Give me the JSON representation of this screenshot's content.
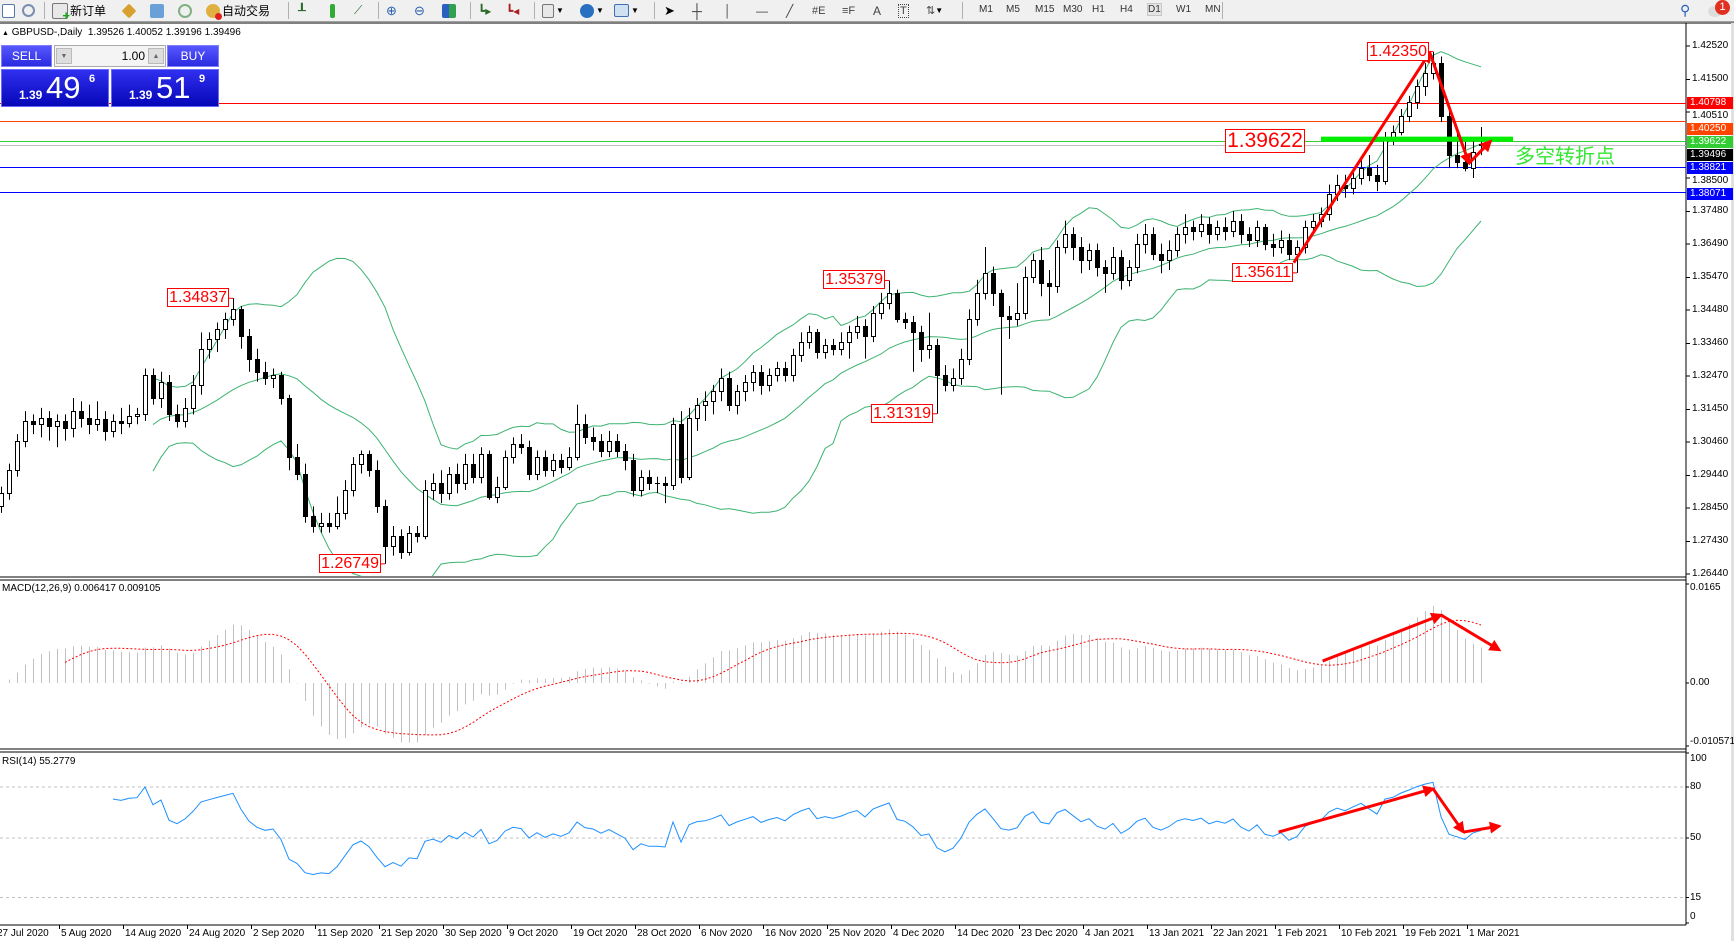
{
  "toolbar": {
    "new_order_label": "新订单",
    "auto_trading_label": "自动交易",
    "timeframes": [
      "M1",
      "M5",
      "M15",
      "M30",
      "H1",
      "H4",
      "D1",
      "W1",
      "MN"
    ],
    "active_timeframe": "D1",
    "notification_count": "1"
  },
  "chart_info": {
    "symbol": "GBPUSD-,Daily",
    "ohlc_text": "1.39526 1.40052 1.39196 1.39496"
  },
  "trade_panel": {
    "sell_label": "SELL",
    "buy_label": "BUY",
    "lot": "1.00",
    "sell_prefix": "1.39",
    "sell_big": "49",
    "sell_pip": "6",
    "buy_prefix": "1.39",
    "buy_big": "51",
    "buy_pip": "9"
  },
  "colors": {
    "bollinger": "#3cb371",
    "rsi": "#1e90ff",
    "macd_hist": "#c0c0c0",
    "macd_signal": "#ff0000",
    "annotation": "#ff0000",
    "pivot_line": "#00ee00"
  },
  "chart_data": {
    "type": "candlestick",
    "symbol": "GBPUSD",
    "timeframe": "Daily",
    "ylim": [
      1.2644,
      1.4252
    ],
    "price_ticks": [
      "1.42520",
      "1.41500",
      "1.40510",
      "1.38500",
      "1.37480",
      "1.36490",
      "1.35470",
      "1.34480",
      "1.33460",
      "1.32470",
      "1.31450",
      "1.30460",
      "1.29440",
      "1.28450",
      "1.27430",
      "1.26440"
    ],
    "date_labels": [
      "27 Jul 2020",
      "5 Aug 2020",
      "14 Aug 2020",
      "24 Aug 2020",
      "2 Sep 2020",
      "11 Sep 2020",
      "21 Sep 2020",
      "30 Sep 2020",
      "9 Oct 2020",
      "19 Oct 2020",
      "28 Oct 2020",
      "6 Nov 2020",
      "16 Nov 2020",
      "25 Nov 2020",
      "4 Dec 2020",
      "14 Dec 2020",
      "23 Dec 2020",
      "4 Jan 2021",
      "13 Jan 2021",
      "22 Jan 2021",
      "1 Feb 2021",
      "10 Feb 2021",
      "19 Feb 2021",
      "1 Mar 2021"
    ],
    "date_label_every_bars": 8,
    "horizontal_lines": [
      {
        "price": 1.40798,
        "label": "1.40798",
        "color": "#ff0000"
      },
      {
        "price": 1.4025,
        "label": "1.40250",
        "color": "#ff4500"
      },
      {
        "price": 1.39622,
        "label": "1.39622",
        "color": "#32cd32"
      },
      {
        "price": 1.39496,
        "label": "1.39496",
        "color": "#000000",
        "line_color": "#c0c0c0"
      },
      {
        "price": 1.38821,
        "label": "1.38821",
        "color": "#0000ff"
      },
      {
        "price": 1.38071,
        "label": "1.38071",
        "color": "#0000ff"
      }
    ],
    "price_annotations": [
      {
        "text": "1.34837",
        "bar": 29,
        "price": 1.34837
      },
      {
        "text": "1.26749",
        "bar": 48,
        "price": 1.26749
      },
      {
        "text": "1.35379",
        "bar": 111,
        "price": 1.35379
      },
      {
        "text": "1.31319",
        "bar": 117,
        "price": 1.31319
      },
      {
        "text": "1.35611",
        "bar": 162,
        "price": 1.35611
      },
      {
        "text": "1.42350",
        "bar": 179,
        "price": 1.4235
      }
    ],
    "pivot": {
      "text": "1.39622",
      "price": 1.39622,
      "bar_from": 165,
      "bar_to": 189,
      "note": "多空转折点"
    },
    "price_arrows": [
      [
        161.6,
        1.3592
      ],
      [
        178.6,
        1.4232
      ],
      [
        183.5,
        1.3895
      ],
      [
        186.2,
        1.3962
      ]
    ],
    "bollinger": {
      "period": 20,
      "deviation": 2
    },
    "ohlc": [
      [
        1.285,
        1.291,
        1.283,
        1.289
      ],
      [
        1.289,
        1.298,
        1.287,
        1.296
      ],
      [
        1.296,
        1.307,
        1.294,
        1.305
      ],
      [
        1.305,
        1.314,
        1.303,
        1.311
      ],
      [
        1.311,
        1.313,
        1.307,
        1.31
      ],
      [
        1.31,
        1.315,
        1.306,
        1.312
      ],
      [
        1.312,
        1.314,
        1.305,
        1.3095
      ],
      [
        1.3095,
        1.313,
        1.303,
        1.311
      ],
      [
        1.311,
        1.313,
        1.305,
        1.309
      ],
      [
        1.309,
        1.318,
        1.306,
        1.314
      ],
      [
        1.314,
        1.317,
        1.309,
        1.312
      ],
      [
        1.312,
        1.316,
        1.307,
        1.31
      ],
      [
        1.31,
        1.317,
        1.308,
        1.3115
      ],
      [
        1.3115,
        1.314,
        1.305,
        1.308
      ],
      [
        1.308,
        1.313,
        1.306,
        1.311
      ],
      [
        1.311,
        1.315,
        1.307,
        1.3105
      ],
      [
        1.3105,
        1.316,
        1.309,
        1.3125
      ],
      [
        1.3125,
        1.315,
        1.31,
        1.313
      ],
      [
        1.313,
        1.327,
        1.311,
        1.325
      ],
      [
        1.325,
        1.327,
        1.316,
        1.318
      ],
      [
        1.318,
        1.326,
        1.315,
        1.323
      ],
      [
        1.323,
        1.325,
        1.311,
        1.313
      ],
      [
        1.313,
        1.316,
        1.309,
        1.311
      ],
      [
        1.311,
        1.318,
        1.309,
        1.315
      ],
      [
        1.315,
        1.325,
        1.313,
        1.322
      ],
      [
        1.322,
        1.338,
        1.319,
        1.333
      ],
      [
        1.333,
        1.338,
        1.33,
        1.336
      ],
      [
        1.336,
        1.341,
        1.332,
        1.339
      ],
      [
        1.339,
        1.344,
        1.336,
        1.342
      ],
      [
        1.342,
        1.3484,
        1.34,
        1.345
      ],
      [
        1.345,
        1.346,
        1.333,
        1.337
      ],
      [
        1.337,
        1.339,
        1.326,
        1.33
      ],
      [
        1.33,
        1.333,
        1.323,
        1.326
      ],
      [
        1.326,
        1.329,
        1.322,
        1.324
      ],
      [
        1.324,
        1.327,
        1.321,
        1.325
      ],
      [
        1.325,
        1.326,
        1.316,
        1.318
      ],
      [
        1.318,
        1.319,
        1.296,
        1.3
      ],
      [
        1.3,
        1.304,
        1.293,
        1.295
      ],
      [
        1.295,
        1.298,
        1.28,
        1.282
      ],
      [
        1.282,
        1.285,
        1.277,
        1.279
      ],
      [
        1.279,
        1.283,
        1.277,
        1.28
      ],
      [
        1.28,
        1.283,
        1.277,
        1.279
      ],
      [
        1.279,
        1.288,
        1.278,
        1.283
      ],
      [
        1.283,
        1.293,
        1.281,
        1.29
      ],
      [
        1.29,
        1.3,
        1.288,
        1.298
      ],
      [
        1.298,
        1.302,
        1.295,
        1.301
      ],
      [
        1.301,
        1.302,
        1.294,
        1.296
      ],
      [
        1.296,
        1.299,
        1.283,
        1.285
      ],
      [
        1.285,
        1.287,
        1.2675,
        1.273
      ],
      [
        1.273,
        1.279,
        1.27,
        1.276
      ],
      [
        1.276,
        1.278,
        1.269,
        1.271
      ],
      [
        1.271,
        1.279,
        1.27,
        1.277
      ],
      [
        1.277,
        1.279,
        1.274,
        1.276
      ],
      [
        1.276,
        1.293,
        1.275,
        1.29
      ],
      [
        1.29,
        1.295,
        1.287,
        1.292
      ],
      [
        1.292,
        1.296,
        1.286,
        1.289
      ],
      [
        1.289,
        1.297,
        1.287,
        1.295
      ],
      [
        1.295,
        1.298,
        1.289,
        1.292
      ],
      [
        1.292,
        1.301,
        1.29,
        1.298
      ],
      [
        1.298,
        1.301,
        1.292,
        1.294
      ],
      [
        1.294,
        1.303,
        1.292,
        1.301
      ],
      [
        1.301,
        1.302,
        1.287,
        1.288
      ],
      [
        1.288,
        1.294,
        1.286,
        1.291
      ],
      [
        1.291,
        1.302,
        1.29,
        1.3
      ],
      [
        1.3,
        1.306,
        1.298,
        1.304
      ],
      [
        1.304,
        1.307,
        1.301,
        1.303
      ],
      [
        1.303,
        1.305,
        1.293,
        1.295
      ],
      [
        1.295,
        1.302,
        1.293,
        1.3
      ],
      [
        1.3,
        1.302,
        1.294,
        1.296
      ],
      [
        1.296,
        1.301,
        1.294,
        1.299
      ],
      [
        1.299,
        1.301,
        1.295,
        1.297
      ],
      [
        1.297,
        1.303,
        1.296,
        1.3
      ],
      [
        1.3,
        1.316,
        1.299,
        1.31
      ],
      [
        1.31,
        1.313,
        1.304,
        1.306
      ],
      [
        1.306,
        1.309,
        1.302,
        1.305
      ],
      [
        1.305,
        1.307,
        1.3,
        1.302
      ],
      [
        1.302,
        1.308,
        1.3,
        1.305
      ],
      [
        1.305,
        1.307,
        1.3,
        1.302
      ],
      [
        1.302,
        1.304,
        1.296,
        1.299
      ],
      [
        1.299,
        1.301,
        1.288,
        1.29
      ],
      [
        1.29,
        1.296,
        1.288,
        1.294
      ],
      [
        1.294,
        1.296,
        1.29,
        1.292
      ],
      [
        1.292,
        1.294,
        1.289,
        1.292
      ],
      [
        1.292,
        1.294,
        1.286,
        1.2915
      ],
      [
        1.2915,
        1.312,
        1.29,
        1.31
      ],
      [
        1.31,
        1.314,
        1.292,
        1.294
      ],
      [
        1.294,
        1.315,
        1.293,
        1.312
      ],
      [
        1.312,
        1.318,
        1.308,
        1.316
      ],
      [
        1.316,
        1.32,
        1.311,
        1.317
      ],
      [
        1.317,
        1.322,
        1.313,
        1.32
      ],
      [
        1.32,
        1.327,
        1.317,
        1.324
      ],
      [
        1.324,
        1.326,
        1.314,
        1.316
      ],
      [
        1.316,
        1.322,
        1.313,
        1.32
      ],
      [
        1.32,
        1.325,
        1.317,
        1.323
      ],
      [
        1.323,
        1.328,
        1.32,
        1.326
      ],
      [
        1.326,
        1.328,
        1.319,
        1.322
      ],
      [
        1.322,
        1.327,
        1.32,
        1.325
      ],
      [
        1.325,
        1.329,
        1.323,
        1.327
      ],
      [
        1.327,
        1.329,
        1.323,
        1.325
      ],
      [
        1.325,
        1.333,
        1.323,
        1.331
      ],
      [
        1.331,
        1.338,
        1.329,
        1.335
      ],
      [
        1.335,
        1.34,
        1.333,
        1.338
      ],
      [
        1.338,
        1.339,
        1.33,
        1.332
      ],
      [
        1.332,
        1.336,
        1.33,
        1.334
      ],
      [
        1.334,
        1.336,
        1.331,
        1.333
      ],
      [
        1.333,
        1.338,
        1.331,
        1.335
      ],
      [
        1.335,
        1.34,
        1.33,
        1.338
      ],
      [
        1.338,
        1.343,
        1.336,
        1.34
      ],
      [
        1.34,
        1.342,
        1.33,
        1.337
      ],
      [
        1.337,
        1.346,
        1.335,
        1.344
      ],
      [
        1.344,
        1.35,
        1.342,
        1.347
      ],
      [
        1.347,
        1.3538,
        1.345,
        1.35
      ],
      [
        1.35,
        1.351,
        1.341,
        1.342
      ],
      [
        1.342,
        1.344,
        1.339,
        1.341
      ],
      [
        1.341,
        1.343,
        1.326,
        1.338
      ],
      [
        1.338,
        1.34,
        1.329,
        1.333
      ],
      [
        1.333,
        1.344,
        1.33,
        1.334
      ],
      [
        1.334,
        1.336,
        1.3132,
        1.325
      ],
      [
        1.325,
        1.328,
        1.32,
        1.322
      ],
      [
        1.322,
        1.327,
        1.32,
        1.324
      ],
      [
        1.324,
        1.333,
        1.322,
        1.33
      ],
      [
        1.33,
        1.345,
        1.328,
        1.342
      ],
      [
        1.342,
        1.354,
        1.34,
        1.35
      ],
      [
        1.35,
        1.364,
        1.348,
        1.356
      ],
      [
        1.356,
        1.358,
        1.346,
        1.35
      ],
      [
        1.35,
        1.351,
        1.319,
        1.343
      ],
      [
        1.343,
        1.346,
        1.336,
        1.342
      ],
      [
        1.342,
        1.353,
        1.34,
        1.344
      ],
      [
        1.344,
        1.358,
        1.342,
        1.355
      ],
      [
        1.355,
        1.362,
        1.353,
        1.36
      ],
      [
        1.36,
        1.364,
        1.349,
        1.353
      ],
      [
        1.353,
        1.357,
        1.343,
        1.352
      ],
      [
        1.352,
        1.366,
        1.35,
        1.364
      ],
      [
        1.364,
        1.372,
        1.362,
        1.368
      ],
      [
        1.368,
        1.37,
        1.36,
        1.364
      ],
      [
        1.364,
        1.367,
        1.356,
        1.36
      ],
      [
        1.36,
        1.365,
        1.357,
        1.363
      ],
      [
        1.363,
        1.365,
        1.355,
        1.358
      ],
      [
        1.358,
        1.36,
        1.35,
        1.356
      ],
      [
        1.356,
        1.364,
        1.354,
        1.361
      ],
      [
        1.361,
        1.363,
        1.351,
        1.354
      ],
      [
        1.354,
        1.36,
        1.352,
        1.358
      ],
      [
        1.358,
        1.368,
        1.356,
        1.365
      ],
      [
        1.365,
        1.371,
        1.362,
        1.368
      ],
      [
        1.368,
        1.37,
        1.36,
        1.362
      ],
      [
        1.362,
        1.365,
        1.356,
        1.36
      ],
      [
        1.36,
        1.366,
        1.357,
        1.363
      ],
      [
        1.363,
        1.37,
        1.361,
        1.368
      ],
      [
        1.368,
        1.374,
        1.365,
        1.37
      ],
      [
        1.37,
        1.372,
        1.366,
        1.369
      ],
      [
        1.369,
        1.374,
        1.367,
        1.371
      ],
      [
        1.371,
        1.373,
        1.365,
        1.368
      ],
      [
        1.368,
        1.372,
        1.366,
        1.37
      ],
      [
        1.37,
        1.373,
        1.366,
        1.369
      ],
      [
        1.369,
        1.375,
        1.367,
        1.372
      ],
      [
        1.372,
        1.374,
        1.365,
        1.368
      ],
      [
        1.368,
        1.37,
        1.364,
        1.366
      ],
      [
        1.366,
        1.372,
        1.364,
        1.37
      ],
      [
        1.37,
        1.371,
        1.363,
        1.365
      ],
      [
        1.365,
        1.368,
        1.361,
        1.364
      ],
      [
        1.364,
        1.369,
        1.362,
        1.366
      ],
      [
        1.366,
        1.368,
        1.36,
        1.362
      ],
      [
        1.362,
        1.366,
        1.3561,
        1.364
      ],
      [
        1.364,
        1.372,
        1.362,
        1.37
      ],
      [
        1.37,
        1.374,
        1.368,
        1.372
      ],
      [
        1.372,
        1.376,
        1.37,
        1.374
      ],
      [
        1.374,
        1.383,
        1.372,
        1.38
      ],
      [
        1.38,
        1.386,
        1.378,
        1.383
      ],
      [
        1.383,
        1.386,
        1.379,
        1.382
      ],
      [
        1.382,
        1.387,
        1.38,
        1.385
      ],
      [
        1.385,
        1.391,
        1.383,
        1.388
      ],
      [
        1.388,
        1.392,
        1.384,
        1.386
      ],
      [
        1.386,
        1.389,
        1.381,
        1.384
      ],
      [
        1.384,
        1.399,
        1.383,
        1.397
      ],
      [
        1.397,
        1.401,
        1.395,
        1.399
      ],
      [
        1.399,
        1.406,
        1.398,
        1.404
      ],
      [
        1.404,
        1.41,
        1.402,
        1.408
      ],
      [
        1.408,
        1.415,
        1.406,
        1.413
      ],
      [
        1.413,
        1.42,
        1.41,
        1.417
      ],
      [
        1.417,
        1.4235,
        1.415,
        1.42
      ],
      [
        1.42,
        1.422,
        1.402,
        1.404
      ],
      [
        1.404,
        1.406,
        1.388,
        1.392
      ],
      [
        1.392,
        1.399,
        1.388,
        1.39
      ],
      [
        1.39,
        1.396,
        1.387,
        1.388
      ],
      [
        1.388,
        1.397,
        1.385,
        1.393
      ],
      [
        1.39526,
        1.40052,
        1.39196,
        1.39496
      ]
    ],
    "macd": {
      "title": "MACD(12,26,9) 0.006417 0.009105",
      "fast": 12,
      "slow": 26,
      "signal": 9,
      "ylim": [
        -0.010571,
        0.0165
      ],
      "ticks": [
        "0.0165",
        "0.00",
        "-0.010571"
      ],
      "arrows": [
        [
          165.2,
          0.00367
        ],
        [
          180,
          0.01133
        ],
        [
          187.3,
          0.0055
        ]
      ]
    },
    "rsi": {
      "title": "RSI(14) 55.2779",
      "period": 14,
      "ylim": [
        0,
        100
      ],
      "ticks": [
        "100",
        "80",
        "50",
        "15",
        "0"
      ],
      "levels": [
        80,
        50,
        15
      ],
      "arrows": [
        [
          159.7,
          53.5
        ],
        [
          179.0,
          79
        ],
        [
          182.8,
          53.5
        ],
        [
          187.3,
          57
        ]
      ]
    }
  }
}
